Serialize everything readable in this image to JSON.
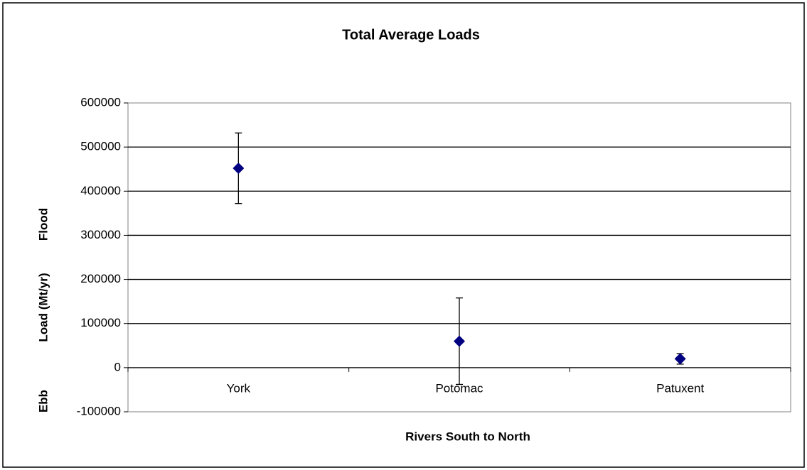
{
  "chart_data": {
    "type": "scatter",
    "title": "Total Average Loads",
    "x_label": "Rivers South to North",
    "y_labels": [
      "Ebb",
      "Load (Mt/yr)",
      "Flood"
    ],
    "categories": [
      "York",
      "Potomac",
      "Patuxent"
    ],
    "values": [
      452000,
      60000,
      20000
    ],
    "errors": [
      80000,
      98000,
      12000
    ],
    "color": "#000080",
    "ylim": [
      -100000,
      600000
    ],
    "yticks": [
      -100000,
      0,
      100000,
      200000,
      300000,
      400000,
      500000,
      600000
    ],
    "grid": true
  }
}
